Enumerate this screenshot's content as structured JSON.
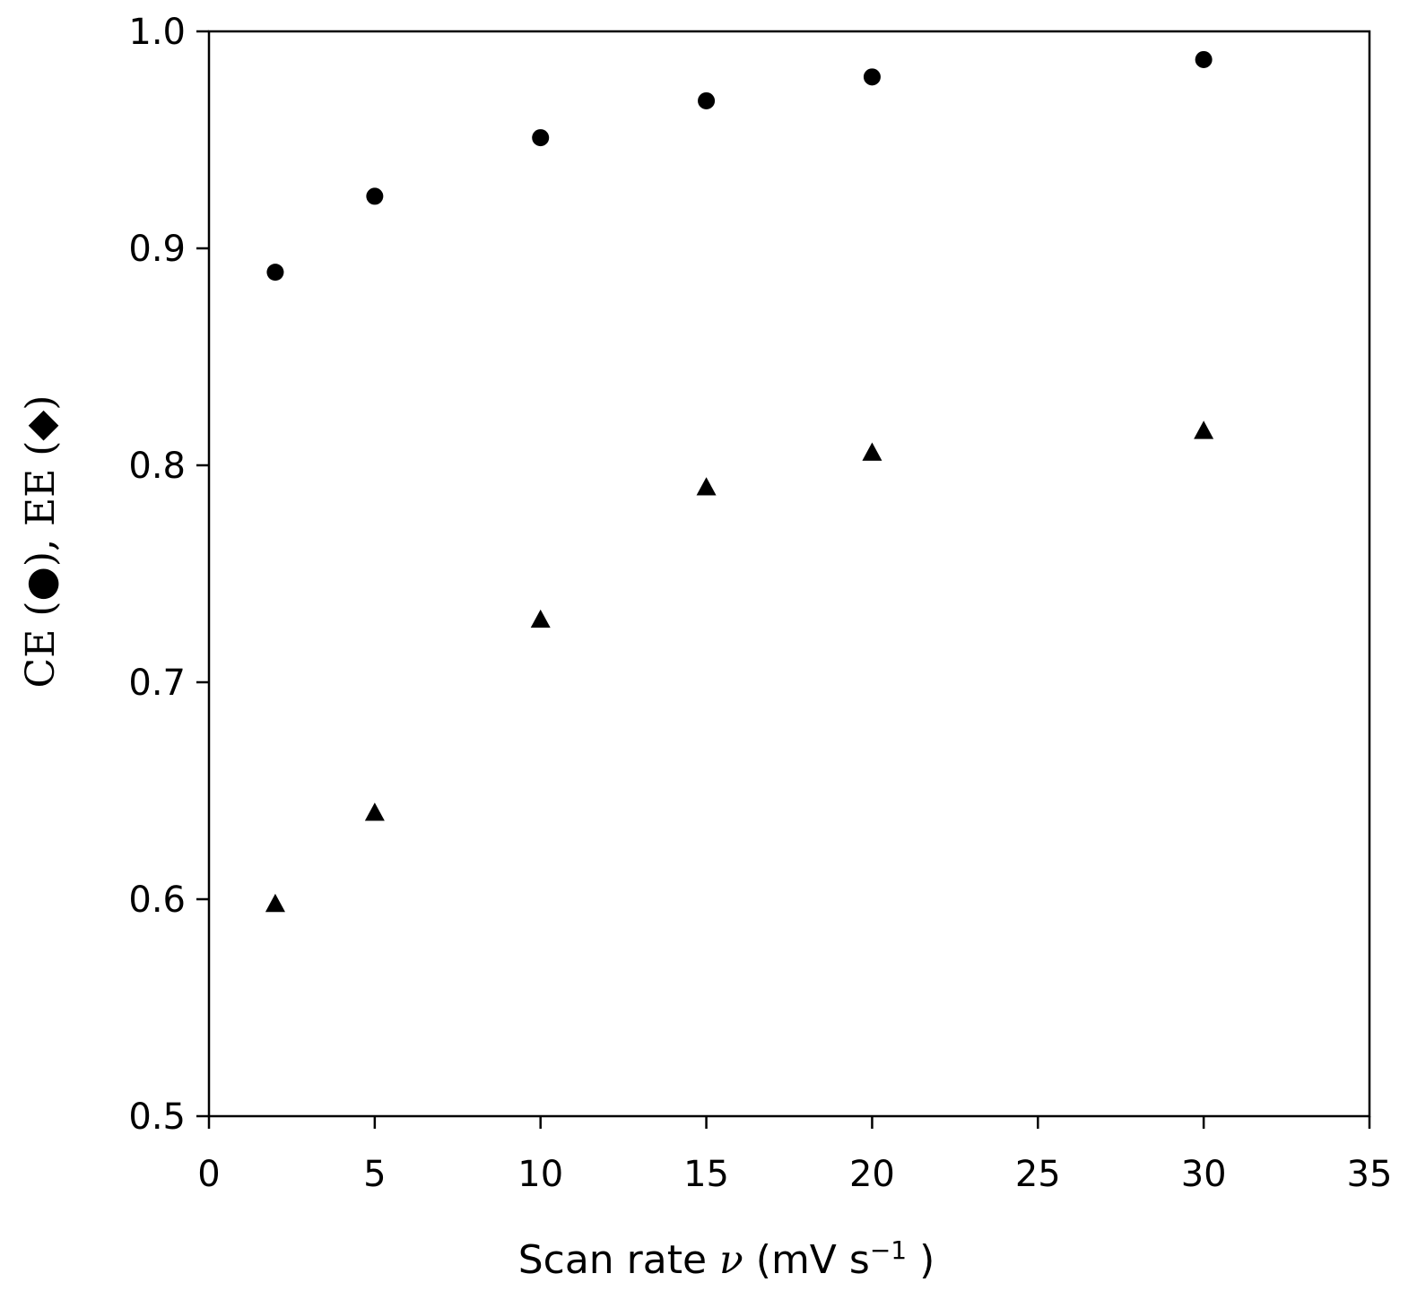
{
  "chart_data": {
    "type": "scatter",
    "title": "",
    "xlabel": {
      "prefix": "Scan rate ",
      "symbol": "ν",
      "units_open": " (mV s",
      "units_sup": "−1",
      "units_close": " )"
    },
    "ylabel": {
      "ce_prefix": "CE (",
      "ce_symbol": "●",
      "mid": "), EE (",
      "ee_symbol": "◆",
      "end": ")"
    },
    "xlim": [
      0,
      35
    ],
    "ylim": [
      0.5,
      1.0
    ],
    "x_ticks": [
      "0",
      "5",
      "10",
      "15",
      "20",
      "25",
      "30",
      "35"
    ],
    "y_ticks": [
      "0.5",
      "0.6",
      "0.7",
      "0.8",
      "0.9",
      "1.0"
    ],
    "grid": false,
    "series": [
      {
        "marker": "circle",
        "x": [
          2,
          5,
          10,
          15,
          20,
          30
        ],
        "y": [
          0.889,
          0.924,
          0.951,
          0.968,
          0.979,
          0.987
        ]
      },
      {
        "marker": "triangle",
        "x": [
          2,
          5,
          10,
          15,
          20,
          30
        ],
        "y": [
          0.598,
          0.64,
          0.729,
          0.79,
          0.806,
          0.816
        ]
      }
    ]
  }
}
